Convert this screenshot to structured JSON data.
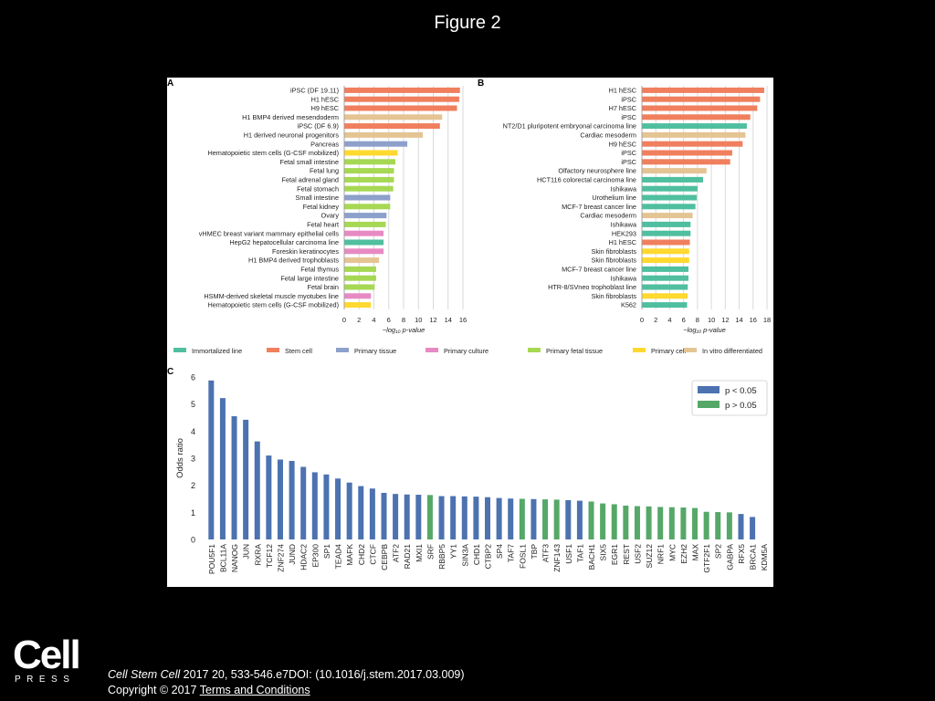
{
  "page": {
    "title": "Figure 2",
    "citation": {
      "journal": "Cell Stem Cell",
      "details": " 2017 20, 533-546.e7DOI: (10.1016/j.stem.2017.03.009)"
    },
    "copyright": "Copyright © 2017 ",
    "terms_link": " Terms and Conditions",
    "logo": {
      "main": "Cell",
      "sub": "PRESS"
    }
  },
  "legend_categories": [
    {
      "name": "Immortalized line",
      "color": "#4fbf9f"
    },
    {
      "name": "Stem cell",
      "color": "#f07f5e"
    },
    {
      "name": "Primary tissue",
      "color": "#8da0cb"
    },
    {
      "name": "Primary culture",
      "color": "#e78ac3"
    },
    {
      "name": "Primary fetal tissue",
      "color": "#a6d854"
    },
    {
      "name": "Primary cell",
      "color": "#ffd92f"
    },
    {
      "name": "In vitro differentiated",
      "color": "#e5c494"
    }
  ],
  "chart_data": [
    {
      "panel": "A",
      "type": "bar",
      "orientation": "horizontal",
      "xlabel": "−log₁₀ p-value",
      "xlim": [
        0,
        16
      ],
      "xticks": [
        0,
        2,
        4,
        6,
        8,
        10,
        12,
        14,
        16
      ],
      "grid": true,
      "categories": [
        "iPSC (DF 19.11)",
        "H1 hESC",
        "H9 hESC",
        "H1 BMP4 derived mesendoderm",
        "iPSC (DF 6.9)",
        "H1 derived neuronal progenitors",
        "Pancreas",
        "Hematopoietic stem cells (G-CSF mobilized)",
        "Fetal small intestine",
        "Fetal lung",
        "Fetal adrenal gland",
        "Fetal stomach",
        "Small intestine",
        "Fetal kidney",
        "Ovary",
        "Fetal heart",
        "vHMEC breast variant mammary epithelial cells",
        "HepG2 hepatocellular carcinoma line",
        "Foreskin keratinocytes",
        "H1 BMP4 derived trophoblasts",
        "Fetal thymus",
        "Fetal large intestine",
        "Fetal brain",
        "HSMM-derived skeletal muscle myotubes line",
        "Hematopoietic stem cells (G-CSF mobilized)"
      ],
      "values": [
        15.6,
        15.5,
        15.2,
        13.2,
        12.9,
        10.6,
        8.5,
        7.2,
        6.9,
        6.7,
        6.7,
        6.6,
        6.2,
        6.2,
        5.7,
        5.6,
        5.3,
        5.3,
        5.3,
        4.7,
        4.3,
        4.3,
        4.1,
        3.6,
        3.6
      ],
      "groups": [
        "Stem cell",
        "Stem cell",
        "Stem cell",
        "In vitro differentiated",
        "Stem cell",
        "In vitro differentiated",
        "Primary tissue",
        "Primary cell",
        "Primary fetal tissue",
        "Primary fetal tissue",
        "Primary fetal tissue",
        "Primary fetal tissue",
        "Primary tissue",
        "Primary fetal tissue",
        "Primary tissue",
        "Primary fetal tissue",
        "Primary culture",
        "Immortalized line",
        "Primary culture",
        "In vitro differentiated",
        "Primary fetal tissue",
        "Primary fetal tissue",
        "Primary fetal tissue",
        "Primary culture",
        "Primary cell"
      ]
    },
    {
      "panel": "B",
      "type": "bar",
      "orientation": "horizontal",
      "xlabel": "−log₁₀ p-value",
      "xlim": [
        0,
        18
      ],
      "xticks": [
        0,
        2,
        4,
        6,
        8,
        10,
        12,
        14,
        16,
        18
      ],
      "grid": true,
      "categories": [
        "H1 hESC",
        "iPSC",
        "H7 hESC",
        "iPSC",
        "NT2/D1 pluripotent embryonal carcinoma line",
        "Cardiac mesoderm",
        "H9 hESC",
        "iPSC",
        "iPSC",
        "Olfactory neurosphere line",
        "HCT116 colorectal carcinoma line",
        "Ishikawa",
        "Urothelium line",
        "MCF-7 breast cancer line",
        "Cardiac mesoderm",
        "Ishikawa",
        "HEK293",
        "H1 hESC",
        "Skin fibroblasts",
        "Skin fibroblasts",
        "MCF-7 breast cancer line",
        "Ishikawa",
        "HTR-8/SVneo trophoblast line",
        "Skin fibroblasts",
        "K562"
      ],
      "values": [
        17.6,
        17.0,
        16.6,
        15.6,
        15.1,
        14.9,
        14.5,
        13.0,
        12.7,
        9.3,
        8.8,
        8.0,
        7.9,
        7.7,
        7.3,
        7.0,
        7.0,
        6.9,
        6.8,
        6.8,
        6.7,
        6.7,
        6.6,
        6.6,
        6.5
      ],
      "groups": [
        "Stem cell",
        "Stem cell",
        "Stem cell",
        "Stem cell",
        "Immortalized line",
        "In vitro differentiated",
        "Stem cell",
        "Stem cell",
        "Stem cell",
        "In vitro differentiated",
        "Immortalized line",
        "Immortalized line",
        "Immortalized line",
        "Immortalized line",
        "In vitro differentiated",
        "Immortalized line",
        "Immortalized line",
        "Stem cell",
        "Primary cell",
        "Primary cell",
        "Immortalized line",
        "Immortalized line",
        "Immortalized line",
        "Primary cell",
        "Immortalized line"
      ]
    },
    {
      "panel": "C",
      "type": "bar",
      "ylabel": "Odds ratio",
      "ylim": [
        0,
        6
      ],
      "yticks": [
        0,
        1,
        2,
        3,
        4,
        5,
        6
      ],
      "legend": {
        "placement": "top-right"
      },
      "series": [
        {
          "name": "p < 0.05",
          "color": "#4c72b0"
        },
        {
          "name": "p > 0.05",
          "color": "#55a868"
        }
      ],
      "categories": [
        "POU5F1",
        "BCL11A",
        "NANOG",
        "JUN",
        "RXRA",
        "TCF12",
        "ZNF274",
        "JUND",
        "HDAC2",
        "EP300",
        "SP1",
        "TEAD4",
        "MAFK",
        "CHD2",
        "CTCF",
        "CEBPB",
        "ATF2",
        "RAD21",
        "MXI1",
        "SRF",
        "RBBP5",
        "YY1",
        "SIN3A",
        "CHD1",
        "CTBP2",
        "SP4",
        "TAF7",
        "FOSL1",
        "TBP",
        "ATF3",
        "ZNF143",
        "USF1",
        "TAF1",
        "BACH1",
        "SIX5",
        "EGR1",
        "REST",
        "USF2",
        "SUZ12",
        "NRF1",
        "MYC",
        "EZH2",
        "MAX",
        "GTF2F1",
        "SP2",
        "GABPA",
        "RFX5",
        "BRCA1",
        "KDM5A"
      ],
      "values": [
        5.87,
        5.22,
        4.55,
        4.42,
        3.62,
        3.1,
        2.95,
        2.9,
        2.68,
        2.48,
        2.4,
        2.25,
        2.1,
        1.97,
        1.88,
        1.72,
        1.68,
        1.66,
        1.65,
        1.64,
        1.6,
        1.6,
        1.59,
        1.58,
        1.56,
        1.53,
        1.51,
        1.5,
        1.49,
        1.48,
        1.47,
        1.45,
        1.43,
        1.4,
        1.33,
        1.3,
        1.25,
        1.23,
        1.22,
        1.2,
        1.19,
        1.18,
        1.16,
        1.02,
        1.01,
        1.0,
        0.94,
        0.83,
        0.0
      ],
      "significance": [
        "p < 0.05",
        "p < 0.05",
        "p < 0.05",
        "p < 0.05",
        "p < 0.05",
        "p < 0.05",
        "p < 0.05",
        "p < 0.05",
        "p < 0.05",
        "p < 0.05",
        "p < 0.05",
        "p < 0.05",
        "p < 0.05",
        "p < 0.05",
        "p < 0.05",
        "p < 0.05",
        "p < 0.05",
        "p < 0.05",
        "p < 0.05",
        "p > 0.05",
        "p < 0.05",
        "p < 0.05",
        "p < 0.05",
        "p < 0.05",
        "p < 0.05",
        "p < 0.05",
        "p < 0.05",
        "p > 0.05",
        "p < 0.05",
        "p > 0.05",
        "p > 0.05",
        "p < 0.05",
        "p < 0.05",
        "p > 0.05",
        "p > 0.05",
        "p > 0.05",
        "p > 0.05",
        "p > 0.05",
        "p > 0.05",
        "p > 0.05",
        "p > 0.05",
        "p > 0.05",
        "p > 0.05",
        "p > 0.05",
        "p > 0.05",
        "p > 0.05",
        "p < 0.05",
        "p < 0.05",
        "p < 0.05"
      ]
    }
  ]
}
